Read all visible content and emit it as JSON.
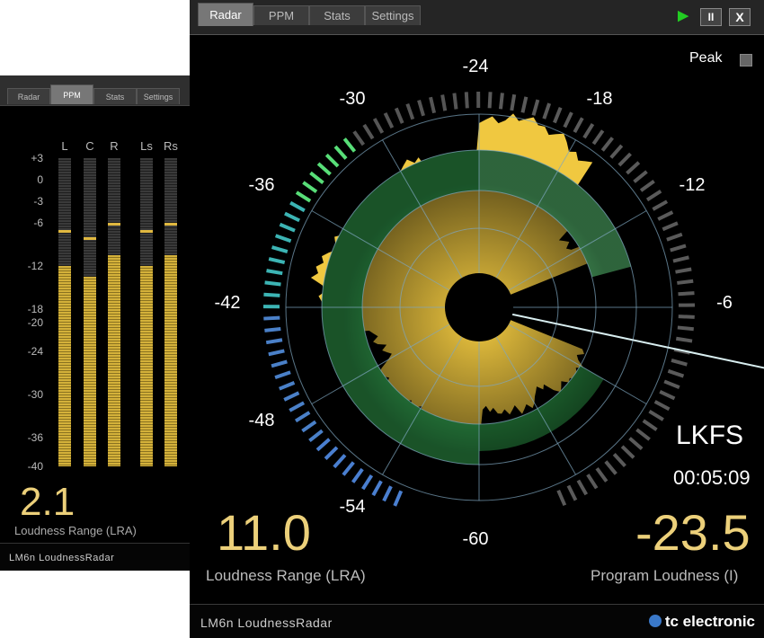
{
  "ppm_window": {
    "tabs": [
      {
        "label": "Radar"
      },
      {
        "label": "PPM"
      },
      {
        "label": "Stats"
      },
      {
        "label": "Settings"
      }
    ],
    "active_tab": "PPM",
    "channels": [
      "L",
      "C",
      "R",
      "Ls",
      "Rs"
    ],
    "scale": [
      "+3",
      "0",
      "-3",
      "-6",
      "-12",
      "-18",
      "-20",
      "-24",
      "-30",
      "-36",
      "-40"
    ],
    "levels": [
      -12,
      -13.5,
      -10.5,
      -12,
      -10.5
    ],
    "peaks": [
      -7,
      -8,
      -6,
      -7,
      -6
    ],
    "lra_value": "2.1",
    "lra_label": "Loudness Range (LRA)",
    "footer_logo": "LM6n LoudnessRadar"
  },
  "main_window": {
    "tabs": [
      {
        "label": "Radar"
      },
      {
        "label": "PPM"
      },
      {
        "label": "Stats"
      },
      {
        "label": "Settings"
      }
    ],
    "active_tab": "Radar",
    "controls": {
      "play": "▶",
      "pause": "II",
      "close": "X"
    },
    "peak_label": "Peak",
    "radar_scale": [
      "-24",
      "-18",
      "-12",
      "-6",
      "-60",
      "-54",
      "-48",
      "-42",
      "-36",
      "-30"
    ],
    "unit": "LKFS",
    "time": "00:05:09",
    "lra_value": "11.0",
    "lra_label": "Loudness Range (LRA)",
    "program_value": "-23.5",
    "program_label": "Program Loudness (I)",
    "footer_logo": "LM6n LoudnessRadar",
    "brand": "tc electronic"
  },
  "colors": {
    "accent_text": "#ecd07a",
    "ring_inner": "#38bcc0",
    "ring_mid": "#14c480",
    "ring_outer": "#66de84",
    "history_high": "#f0c840",
    "play_green": "#22cc22"
  }
}
